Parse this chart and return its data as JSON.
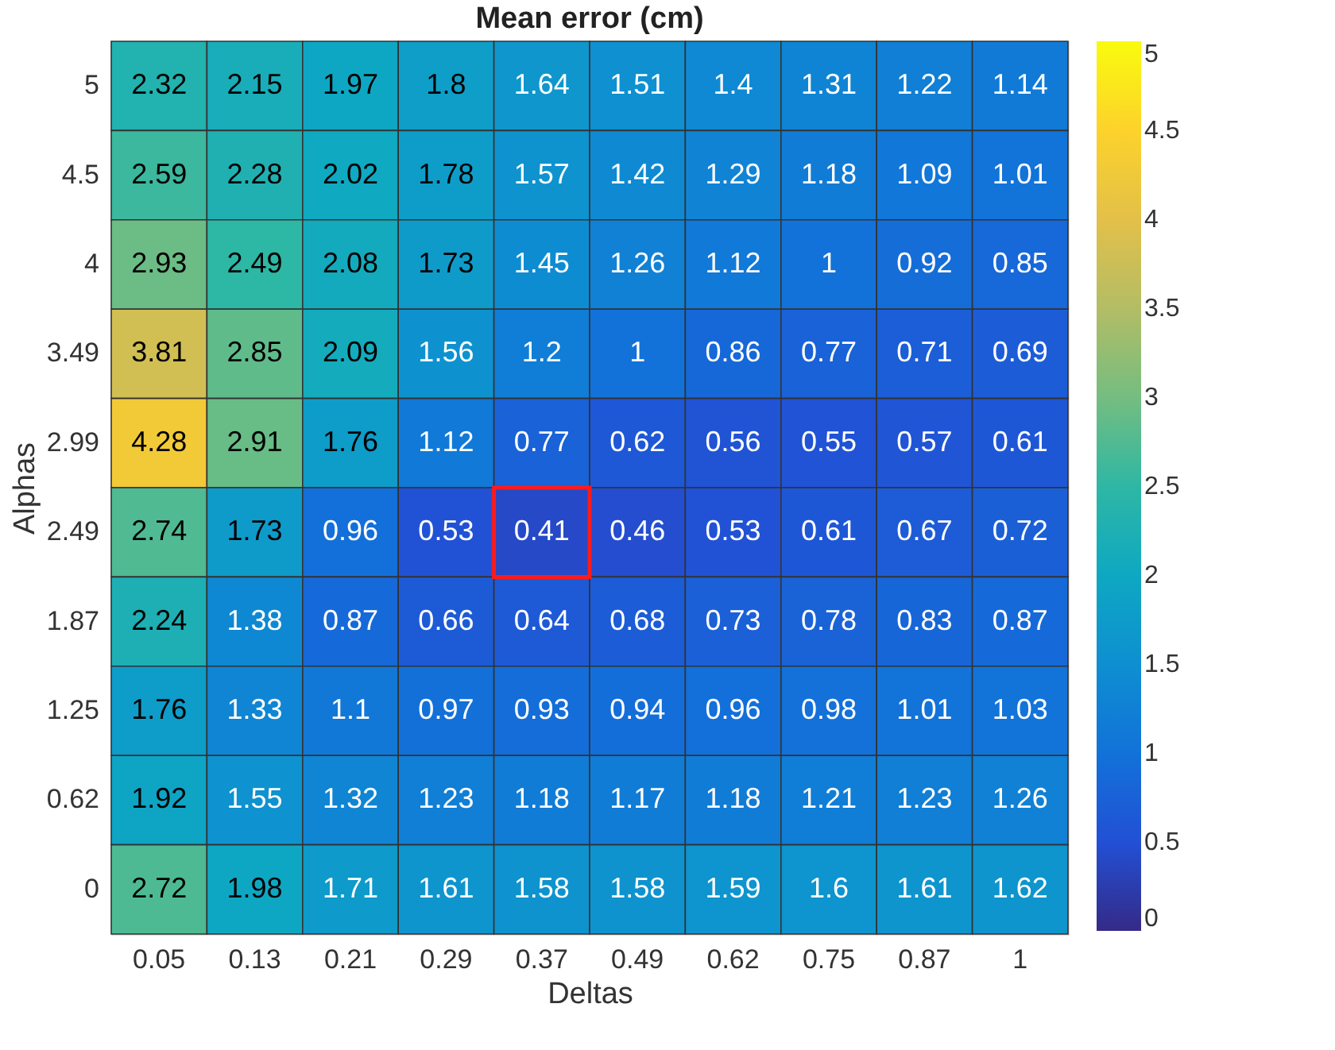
{
  "chart_data": {
    "type": "heatmap",
    "title": "Mean error (cm)",
    "xlabel": "Deltas",
    "ylabel": "Alphas",
    "categories": [
      "0.05",
      "0.13",
      "0.21",
      "0.29",
      "0.37",
      "0.49",
      "0.62",
      "0.75",
      "0.87",
      "1"
    ],
    "y_categories": [
      "5",
      "4.5",
      "4",
      "3.49",
      "2.99",
      "2.49",
      "1.87",
      "1.25",
      "0.62",
      "0"
    ],
    "cells": [
      [
        2.32,
        2.15,
        1.97,
        1.8,
        1.64,
        1.51,
        1.4,
        1.31,
        1.22,
        1.14
      ],
      [
        2.59,
        2.28,
        2.02,
        1.78,
        1.57,
        1.42,
        1.29,
        1.18,
        1.09,
        1.01
      ],
      [
        2.93,
        2.49,
        2.08,
        1.73,
        1.45,
        1.26,
        1.12,
        1,
        0.92,
        0.85
      ],
      [
        3.81,
        2.85,
        2.09,
        1.56,
        1.2,
        1,
        0.86,
        0.77,
        0.71,
        0.69
      ],
      [
        4.28,
        2.91,
        1.76,
        1.12,
        0.77,
        0.62,
        0.56,
        0.55,
        0.57,
        0.61
      ],
      [
        2.74,
        1.73,
        0.96,
        0.53,
        0.41,
        0.46,
        0.53,
        0.61,
        0.67,
        0.72
      ],
      [
        2.24,
        1.38,
        0.87,
        0.66,
        0.64,
        0.68,
        0.73,
        0.78,
        0.83,
        0.87
      ],
      [
        1.76,
        1.33,
        1.1,
        0.97,
        0.93,
        0.94,
        0.96,
        0.98,
        1.01,
        1.03
      ],
      [
        1.92,
        1.55,
        1.32,
        1.23,
        1.18,
        1.17,
        1.18,
        1.21,
        1.23,
        1.26
      ],
      [
        2.72,
        1.98,
        1.71,
        1.61,
        1.58,
        1.58,
        1.59,
        1.6,
        1.61,
        1.62
      ]
    ],
    "data_labels": true,
    "clim": [
      0,
      5
    ],
    "cticks": [
      0,
      0.5,
      1,
      1.5,
      2,
      2.5,
      3,
      3.5,
      4,
      4.5,
      5
    ]
  }
}
